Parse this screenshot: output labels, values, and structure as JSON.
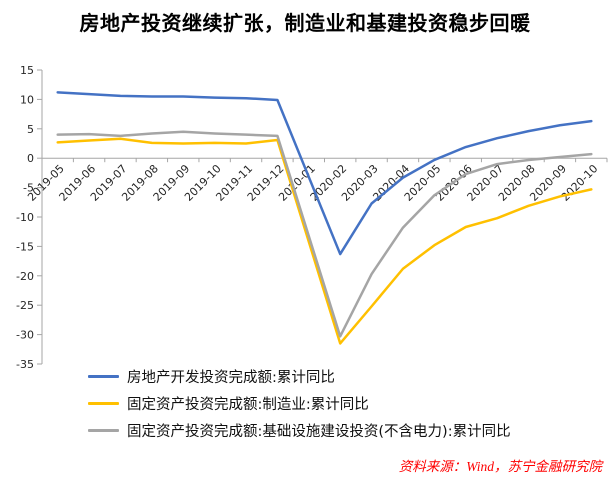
{
  "title": "房地产投资继续扩张，制造业和基建投资稳步回暖",
  "source_note": "资料来源：Wind，苏宁金融研究院",
  "colors": {
    "axis_line": "#A6A6A6",
    "tick_label": "#262626",
    "title": "#000000",
    "source_note": "#FF0000"
  },
  "chart_data": {
    "type": "line",
    "title": "房地产投资继续扩张，制造业和基建投资稳步回暖",
    "categories": [
      "2019-05",
      "2019-06",
      "2019-07",
      "2019-08",
      "2019-09",
      "2019-10",
      "2019-11",
      "2019-12",
      "2020-01",
      "2020-02",
      "2020-03",
      "2020-04",
      "2020-05",
      "2020-06",
      "2020-07",
      "2020-08",
      "2020-09",
      "2020-10"
    ],
    "series": [
      {
        "name": "房地产开发投资完成额:累计同比",
        "color": "#4472C4",
        "values": [
          11.2,
          10.9,
          10.6,
          10.5,
          10.5,
          10.3,
          10.2,
          9.9,
          null,
          -16.3,
          -7.7,
          -3.3,
          -0.3,
          1.9,
          3.4,
          4.6,
          5.6,
          6.3
        ]
      },
      {
        "name": "固定资产投资完成额:制造业:累计同比",
        "color": "#FFC000",
        "values": [
          2.7,
          3.0,
          3.3,
          2.6,
          2.5,
          2.6,
          2.5,
          3.1,
          null,
          -31.5,
          -25.2,
          -18.8,
          -14.8,
          -11.7,
          -10.2,
          -8.1,
          -6.5,
          -5.3
        ]
      },
      {
        "name": "固定资产投资完成额:基础设施建设投资(不含电力):累计同比",
        "color": "#A5A5A5",
        "values": [
          4.0,
          4.1,
          3.8,
          4.2,
          4.5,
          4.2,
          4.0,
          3.8,
          null,
          -30.3,
          -19.7,
          -11.8,
          -6.3,
          -2.7,
          -1.0,
          -0.3,
          0.2,
          0.7
        ]
      }
    ],
    "ylim": [
      -35,
      15
    ],
    "ytick_step": 5,
    "grid": false,
    "legend_position": "bottom-left",
    "x_label_rotation": 45
  }
}
